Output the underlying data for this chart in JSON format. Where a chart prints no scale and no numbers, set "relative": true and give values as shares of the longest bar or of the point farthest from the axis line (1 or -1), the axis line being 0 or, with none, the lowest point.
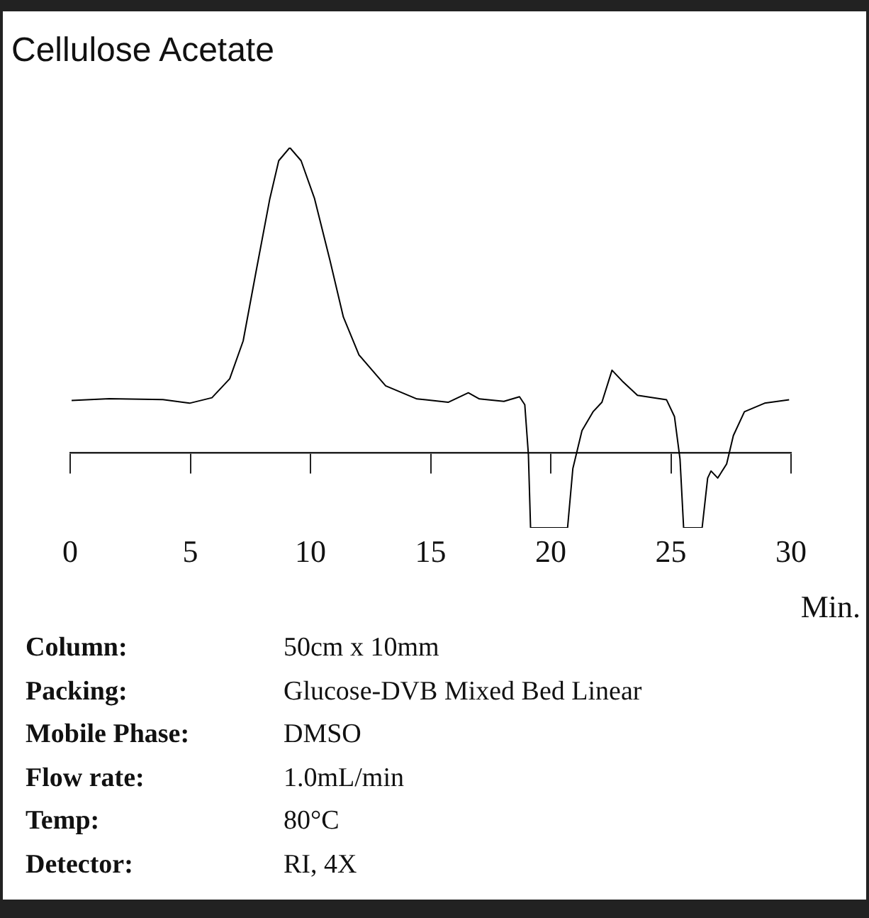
{
  "chart_data": {
    "type": "line",
    "title": "Cellulose Acetate",
    "xlabel": "Min.",
    "relative": true,
    "color": "#000000",
    "marker": "none",
    "line_style": "solid",
    "grid": false,
    "legend": false,
    "tick_labels": "x",
    "xlim": [
      0,
      30
    ],
    "xticks": [
      0,
      5,
      10,
      15,
      20,
      25,
      30
    ],
    "x": [
      0.06,
      1.63,
      3.86,
      4.97,
      5.9,
      6.64,
      7.2,
      7.75,
      8.31,
      8.68,
      9.14,
      9.61,
      10.17,
      10.81,
      11.37,
      12.02,
      13.13,
      14.43,
      14.8,
      15.73,
      16.57,
      17.03,
      18.05,
      18.7,
      18.92,
      19.07,
      19.16,
      20.7,
      20.92,
      21.3,
      21.76,
      22.13,
      22.55,
      22.97,
      23.61,
      24.82,
      25.15,
      25.38,
      25.53,
      26.3,
      26.53,
      26.67,
      26.95,
      27.32,
      27.6,
      28.06,
      28.9,
      29.92
    ],
    "values": [
      0.172,
      0.178,
      0.175,
      0.163,
      0.181,
      0.243,
      0.367,
      0.6,
      0.833,
      0.957,
      1,
      0.957,
      0.833,
      0.631,
      0.445,
      0.321,
      0.22,
      0.177,
      0.174,
      0.166,
      0.197,
      0.177,
      0.169,
      0.184,
      0.158,
      -0.005,
      -0.245,
      -0.245,
      -0.051,
      0.073,
      0.135,
      0.166,
      0.271,
      0.236,
      0.189,
      0.174,
      0.119,
      -0.02,
      -0.245,
      -0.245,
      -0.082,
      -0.059,
      -0.082,
      -0.036,
      0.057,
      0.135,
      0.163,
      0.174
    ],
    "annotations": [
      "Column: 50cm x 10mm",
      "Packing: Glucose-DVB Mixed Bed Linear",
      "Mobile Phase: DMSO",
      "Flow rate: 1.0mL/min",
      "Temp: 80°C",
      "Detector: RI, 4X"
    ]
  }
}
